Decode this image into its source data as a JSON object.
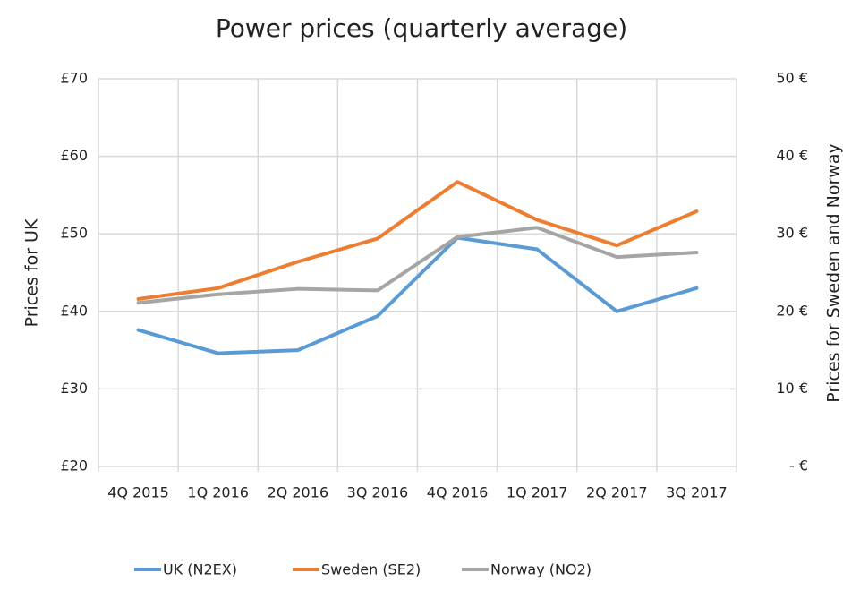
{
  "chart_data": {
    "type": "line",
    "title": "Power prices (quarterly average)",
    "categories": [
      "4Q 2015",
      "1Q 2016",
      "2Q 2016",
      "3Q 2016",
      "4Q 2016",
      "1Q 2017",
      "2Q 2017",
      "3Q 2017"
    ],
    "series": [
      {
        "name": "UK (N2EX)",
        "color": "#5b9bd5",
        "values": [
          37.6,
          34.6,
          35.0,
          39.4,
          49.5,
          48.0,
          40.0,
          43.0
        ]
      },
      {
        "name": "Sweden (SE2)",
        "color": "#ed7d31",
        "axis": "y2",
        "values": [
          21.6,
          23.0,
          26.4,
          29.4,
          36.7,
          31.8,
          28.5,
          32.9
        ]
      },
      {
        "name": "Norway (NO2)",
        "color": "#a5a5a5",
        "axis": "y2",
        "values": [
          21.1,
          22.2,
          22.9,
          22.7,
          29.6,
          30.8,
          27.0,
          27.6
        ]
      }
    ],
    "ylabel": "Prices for UK",
    "y2label": "Prices for Sweden and Norway",
    "ylim": [
      20,
      70
    ],
    "yticks": [
      {
        "value": 20,
        "label": "£20"
      },
      {
        "value": 30,
        "label": "£30"
      },
      {
        "value": 40,
        "label": "£40"
      },
      {
        "value": 50,
        "label": "£50"
      },
      {
        "value": 60,
        "label": "£60"
      },
      {
        "value": 70,
        "label": "£70"
      }
    ],
    "y2lim": [
      0,
      50
    ],
    "y2ticks": [
      {
        "value": 0,
        "label": "- €"
      },
      {
        "value": 10,
        "label": "10 €"
      },
      {
        "value": 20,
        "label": "20 €"
      },
      {
        "value": 30,
        "label": "30 €"
      },
      {
        "value": 40,
        "label": "40 €"
      },
      {
        "value": 50,
        "label": "50 €"
      }
    ],
    "grid": true,
    "legend": "bottom"
  }
}
